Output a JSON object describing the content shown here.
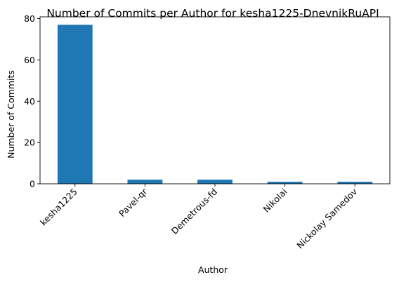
{
  "chart_data": {
    "type": "bar",
    "title": "Number of Commits per Author for kesha1225-DnevnikRuAPI",
    "xlabel": "Author",
    "ylabel": "Number of Commits",
    "categories": [
      "kesha1225",
      "Pavel-qr",
      "Demetrous-fd",
      "Nikolai",
      "Nickolay Samedov"
    ],
    "values": [
      77,
      2,
      2,
      1,
      1
    ],
    "ylim": [
      0,
      80.85
    ],
    "yticks": [
      "0",
      "20",
      "40",
      "60",
      "80"
    ],
    "grid": false,
    "legend": "none",
    "bar_color": "#1f77b4"
  }
}
